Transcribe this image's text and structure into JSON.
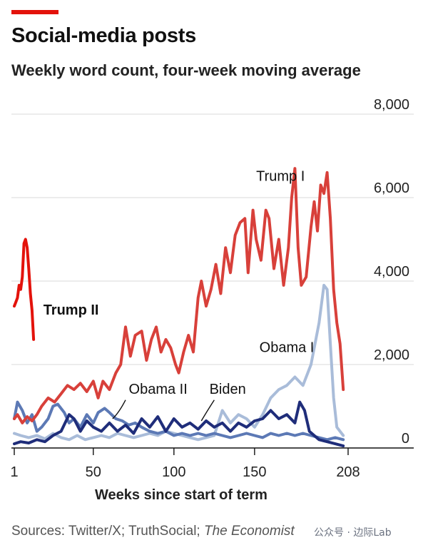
{
  "header": {
    "accent_color": "#e3120b",
    "title": "Social-media posts",
    "subtitle": "Weekly word count, four-week moving average"
  },
  "footer": {
    "source_prefix": "Sources: Twitter/X; TruthSocial; ",
    "source_italic": "The Economist",
    "watermark": "公众号 · 边际Lab"
  },
  "chart_data": {
    "type": "line",
    "title": "Social-media posts",
    "subtitle": "Weekly word count, four-week moving average",
    "xlabel": "Weeks since start of term",
    "ylabel": "",
    "xlim": [
      1,
      208
    ],
    "ylim": [
      0,
      8000
    ],
    "x_ticks": [
      1,
      50,
      100,
      150,
      208
    ],
    "y_ticks": [
      2000,
      4000,
      6000,
      8000
    ],
    "y_tick_labels": [
      "2,000",
      "4,000",
      "6,000",
      "8,000"
    ],
    "zero_label": "0",
    "grid": true,
    "series": [
      {
        "name": "Obama I",
        "color": "#a9bcd9",
        "points": [
          [
            1,
            350
          ],
          [
            5,
            300
          ],
          [
            10,
            250
          ],
          [
            15,
            300
          ],
          [
            20,
            220
          ],
          [
            25,
            350
          ],
          [
            30,
            250
          ],
          [
            35,
            200
          ],
          [
            40,
            300
          ],
          [
            45,
            200
          ],
          [
            50,
            250
          ],
          [
            55,
            300
          ],
          [
            60,
            250
          ],
          [
            65,
            350
          ],
          [
            70,
            300
          ],
          [
            75,
            250
          ],
          [
            80,
            300
          ],
          [
            85,
            350
          ],
          [
            90,
            300
          ],
          [
            95,
            400
          ],
          [
            100,
            350
          ],
          [
            105,
            300
          ],
          [
            110,
            250
          ],
          [
            115,
            200
          ],
          [
            120,
            250
          ],
          [
            125,
            300
          ],
          [
            130,
            900
          ],
          [
            135,
            600
          ],
          [
            140,
            800
          ],
          [
            145,
            700
          ],
          [
            150,
            500
          ],
          [
            155,
            800
          ],
          [
            160,
            1200
          ],
          [
            165,
            1400
          ],
          [
            170,
            1500
          ],
          [
            175,
            1700
          ],
          [
            180,
            1500
          ],
          [
            185,
            2000
          ],
          [
            190,
            3000
          ],
          [
            193,
            3900
          ],
          [
            195,
            3800
          ],
          [
            197,
            2500
          ],
          [
            199,
            1200
          ],
          [
            201,
            500
          ],
          [
            205,
            300
          ]
        ]
      },
      {
        "name": "Obama II",
        "color": "#5c79b5",
        "points": [
          [
            1,
            700
          ],
          [
            3,
            1100
          ],
          [
            6,
            900
          ],
          [
            9,
            600
          ],
          [
            12,
            800
          ],
          [
            15,
            400
          ],
          [
            18,
            500
          ],
          [
            22,
            700
          ],
          [
            25,
            1000
          ],
          [
            28,
            1050
          ],
          [
            32,
            850
          ],
          [
            35,
            600
          ],
          [
            38,
            700
          ],
          [
            42,
            500
          ],
          [
            46,
            800
          ],
          [
            50,
            600
          ],
          [
            53,
            850
          ],
          [
            57,
            950
          ],
          [
            60,
            850
          ],
          [
            64,
            700
          ],
          [
            68,
            650
          ],
          [
            72,
            550
          ],
          [
            76,
            600
          ],
          [
            80,
            500
          ],
          [
            85,
            400
          ],
          [
            90,
            350
          ],
          [
            95,
            400
          ],
          [
            100,
            300
          ],
          [
            105,
            350
          ],
          [
            110,
            300
          ],
          [
            115,
            350
          ],
          [
            120,
            300
          ],
          [
            125,
            350
          ],
          [
            130,
            300
          ],
          [
            135,
            250
          ],
          [
            140,
            300
          ],
          [
            145,
            350
          ],
          [
            150,
            300
          ],
          [
            155,
            250
          ],
          [
            160,
            350
          ],
          [
            165,
            300
          ],
          [
            170,
            350
          ],
          [
            175,
            300
          ],
          [
            180,
            350
          ],
          [
            185,
            300
          ],
          [
            190,
            250
          ],
          [
            195,
            200
          ],
          [
            200,
            250
          ],
          [
            205,
            200
          ]
        ]
      },
      {
        "name": "Biden",
        "color": "#1f2d7a",
        "points": [
          [
            1,
            100
          ],
          [
            5,
            150
          ],
          [
            10,
            120
          ],
          [
            15,
            200
          ],
          [
            20,
            150
          ],
          [
            25,
            300
          ],
          [
            30,
            400
          ],
          [
            35,
            800
          ],
          [
            38,
            700
          ],
          [
            42,
            400
          ],
          [
            46,
            650
          ],
          [
            50,
            500
          ],
          [
            55,
            400
          ],
          [
            60,
            600
          ],
          [
            65,
            400
          ],
          [
            70,
            550
          ],
          [
            75,
            350
          ],
          [
            80,
            700
          ],
          [
            85,
            500
          ],
          [
            90,
            750
          ],
          [
            95,
            400
          ],
          [
            100,
            700
          ],
          [
            105,
            500
          ],
          [
            110,
            600
          ],
          [
            115,
            450
          ],
          [
            120,
            650
          ],
          [
            125,
            500
          ],
          [
            130,
            600
          ],
          [
            135,
            400
          ],
          [
            140,
            600
          ],
          [
            145,
            500
          ],
          [
            150,
            650
          ],
          [
            155,
            700
          ],
          [
            160,
            900
          ],
          [
            165,
            700
          ],
          [
            170,
            800
          ],
          [
            175,
            600
          ],
          [
            178,
            1100
          ],
          [
            181,
            900
          ],
          [
            184,
            400
          ],
          [
            187,
            300
          ],
          [
            190,
            200
          ],
          [
            195,
            150
          ],
          [
            200,
            100
          ],
          [
            205,
            50
          ]
        ]
      },
      {
        "name": "Trump I",
        "color": "#d8403a",
        "points": [
          [
            1,
            700
          ],
          [
            3,
            800
          ],
          [
            6,
            600
          ],
          [
            9,
            750
          ],
          [
            12,
            650
          ],
          [
            15,
            800
          ],
          [
            18,
            1000
          ],
          [
            22,
            1200
          ],
          [
            26,
            1100
          ],
          [
            30,
            1300
          ],
          [
            34,
            1500
          ],
          [
            38,
            1400
          ],
          [
            42,
            1550
          ],
          [
            46,
            1350
          ],
          [
            50,
            1600
          ],
          [
            53,
            1200
          ],
          [
            56,
            1600
          ],
          [
            60,
            1400
          ],
          [
            64,
            1800
          ],
          [
            67,
            2000
          ],
          [
            70,
            2900
          ],
          [
            73,
            2200
          ],
          [
            76,
            2700
          ],
          [
            80,
            2800
          ],
          [
            83,
            2100
          ],
          [
            86,
            2600
          ],
          [
            89,
            2900
          ],
          [
            92,
            2300
          ],
          [
            95,
            2600
          ],
          [
            98,
            2400
          ],
          [
            101,
            2000
          ],
          [
            103,
            1800
          ],
          [
            106,
            2300
          ],
          [
            109,
            2700
          ],
          [
            112,
            2300
          ],
          [
            115,
            3600
          ],
          [
            117,
            4000
          ],
          [
            120,
            3400
          ],
          [
            123,
            3800
          ],
          [
            126,
            4400
          ],
          [
            129,
            3700
          ],
          [
            132,
            4800
          ],
          [
            135,
            4200
          ],
          [
            138,
            5100
          ],
          [
            141,
            5400
          ],
          [
            144,
            5500
          ],
          [
            146,
            4200
          ],
          [
            149,
            5700
          ],
          [
            151,
            5000
          ],
          [
            154,
            4500
          ],
          [
            157,
            5700
          ],
          [
            159,
            5500
          ],
          [
            162,
            4300
          ],
          [
            165,
            5000
          ],
          [
            168,
            3900
          ],
          [
            171,
            4800
          ],
          [
            173,
            6000
          ],
          [
            175,
            6700
          ],
          [
            177,
            4800
          ],
          [
            179,
            3900
          ],
          [
            182,
            4100
          ],
          [
            185,
            5300
          ],
          [
            187,
            5900
          ],
          [
            189,
            5200
          ],
          [
            191,
            6300
          ],
          [
            193,
            6100
          ],
          [
            195,
            6600
          ],
          [
            197,
            5500
          ],
          [
            199,
            3800
          ],
          [
            201,
            3000
          ],
          [
            203,
            2500
          ],
          [
            205,
            1400
          ]
        ]
      },
      {
        "name": "Trump II",
        "color": "#e3120b",
        "points": [
          [
            1,
            3400
          ],
          [
            2,
            3500
          ],
          [
            3,
            3600
          ],
          [
            4,
            3900
          ],
          [
            5,
            3800
          ],
          [
            6,
            4100
          ],
          [
            7,
            4900
          ],
          [
            8,
            5000
          ],
          [
            9,
            4800
          ],
          [
            10,
            4300
          ],
          [
            11,
            3700
          ],
          [
            12,
            3300
          ],
          [
            13,
            2600
          ]
        ]
      }
    ],
    "annotations": [
      {
        "text": "Trump I",
        "x": 151,
        "y": 6400,
        "series": "Trump I"
      },
      {
        "text": "Trump II",
        "x": 19,
        "y": 3200,
        "series": "Trump II"
      },
      {
        "text": "Obama I",
        "x": 153,
        "y": 2300,
        "series": "Obama I"
      },
      {
        "text": "Obama II",
        "x": 72,
        "y": 1300,
        "series": "Obama II"
      },
      {
        "text": "Biden",
        "x": 122,
        "y": 1300,
        "series": "Biden"
      }
    ],
    "zero_line": true
  }
}
